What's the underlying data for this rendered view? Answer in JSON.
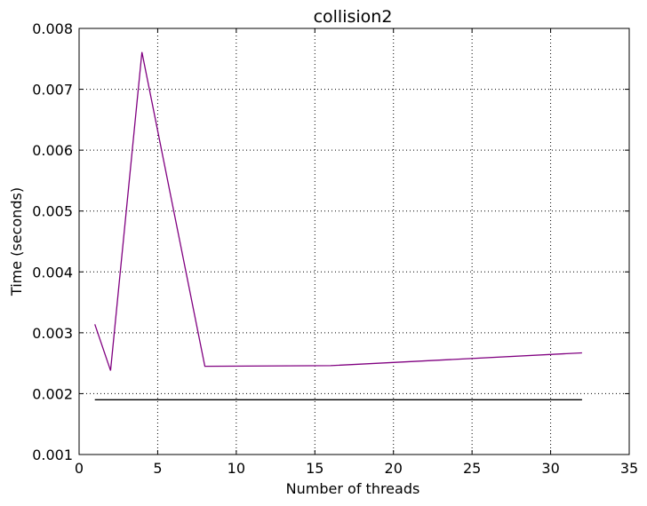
{
  "chart_data": {
    "type": "line",
    "title": "collision2",
    "xlabel": "Number of threads",
    "ylabel": "Time (seconds)",
    "xlim": [
      0,
      35
    ],
    "ylim": [
      0.001,
      0.008
    ],
    "x_ticks": [
      "0",
      "5",
      "10",
      "15",
      "20",
      "25",
      "30",
      "35"
    ],
    "y_ticks": [
      "0.001",
      "0.002",
      "0.003",
      "0.004",
      "0.005",
      "0.006",
      "0.007",
      "0.008"
    ],
    "grid": true,
    "series": [
      {
        "color": "#800080",
        "points": [
          [
            1,
            0.00314
          ],
          [
            2,
            0.00238
          ],
          [
            4,
            0.00761
          ],
          [
            8,
            0.00245
          ],
          [
            16,
            0.00246
          ],
          [
            32,
            0.00267
          ]
        ]
      },
      {
        "color": "#000000",
        "points": [
          [
            1,
            0.0019
          ],
          [
            32,
            0.0019
          ]
        ]
      }
    ]
  }
}
